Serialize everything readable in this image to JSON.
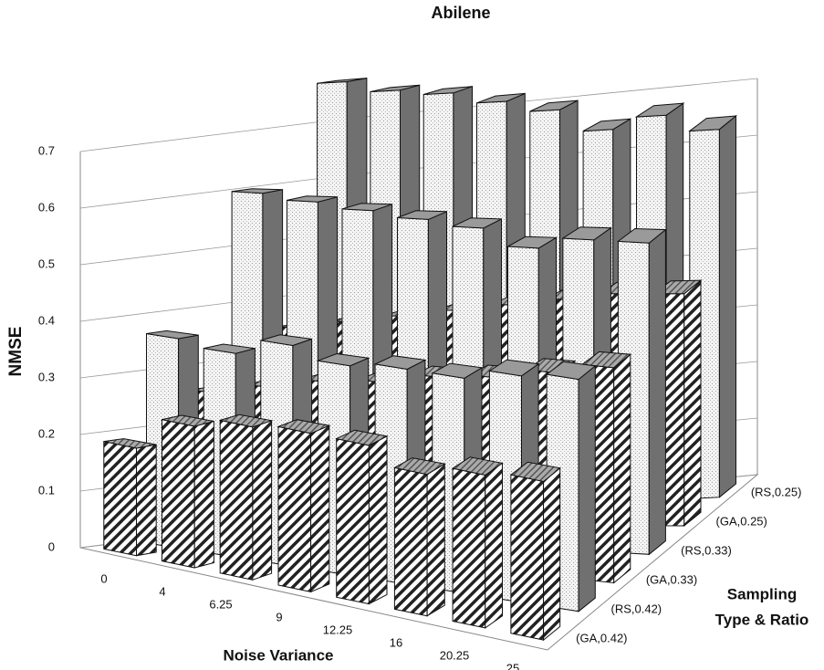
{
  "chart_data": {
    "type": "bar3d",
    "title": "Abilene",
    "x_label": "Noise Variance",
    "y_label": "NMSE",
    "z_label": [
      "Sampling",
      "Type & Ratio"
    ],
    "categories": [
      "0",
      "4",
      "6.25",
      "9",
      "12.25",
      "16",
      "20.25",
      "25"
    ],
    "ylim": [
      0,
      0.7
    ],
    "yticks": [
      0,
      0.1,
      0.2,
      0.3,
      0.4,
      0.5,
      0.6,
      0.7
    ],
    "grid": true,
    "series": [
      {
        "name": "(GA,0.42)",
        "pattern": "hatch",
        "color": "#ffffff",
        "values": [
          0.19,
          0.25,
          0.27,
          0.28,
          0.28,
          0.25,
          0.27,
          0.28
        ]
      },
      {
        "name": "(RS,0.42)",
        "pattern": "dots",
        "color": "#f4f4f4",
        "values": [
          0.37,
          0.36,
          0.39,
          0.37,
          0.38,
          0.38,
          0.4,
          0.41
        ]
      },
      {
        "name": "(GA,0.33)",
        "pattern": "hatch",
        "color": "#ffffff",
        "values": [
          0.26,
          0.28,
          0.3,
          0.31,
          0.33,
          0.34,
          0.36,
          0.38
        ]
      },
      {
        "name": "(RS,0.33)",
        "pattern": "dots",
        "color": "#f4f4f4",
        "values": [
          0.6,
          0.59,
          0.58,
          0.57,
          0.56,
          0.53,
          0.55,
          0.55
        ]
      },
      {
        "name": "(GA,0.25)",
        "pattern": "hatch",
        "color": "#ffffff",
        "values": [
          0.35,
          0.36,
          0.37,
          0.38,
          0.39,
          0.4,
          0.41,
          0.41
        ]
      },
      {
        "name": "(RS,0.25)",
        "pattern": "dots",
        "color": "#f4f4f4",
        "values": [
          0.77,
          0.75,
          0.74,
          0.72,
          0.7,
          0.66,
          0.68,
          0.65
        ]
      }
    ]
  }
}
